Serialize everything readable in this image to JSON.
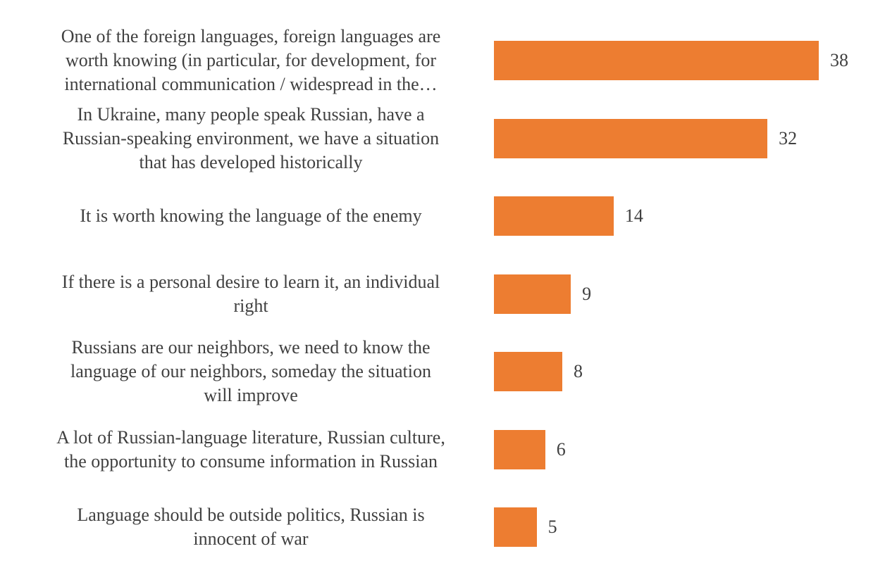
{
  "chart_data": {
    "type": "bar",
    "orientation": "horizontal",
    "categories": [
      "One of the foreign languages, foreign languages are\nworth knowing (in particular, for development, for\ninternational communication / widespread in the…",
      "In Ukraine, many people speak Russian, have a\nRussian-speaking environment, we have a situation\nthat has developed historically",
      "It is worth knowing the language of the enemy",
      "If there is a personal desire to learn it, an individual\nright",
      "Russians are our neighbors, we need to know the\nlanguage of our neighbors, someday the situation\nwill improve",
      "A lot of Russian-language literature, Russian culture,\nthe opportunity to consume information in Russian",
      "Language should be outside politics, Russian is\ninnocent of war"
    ],
    "values": [
      38,
      32,
      14,
      9,
      8,
      6,
      5
    ],
    "data_labels": [
      "38",
      "32",
      "14",
      "9",
      "8",
      "6",
      "5"
    ],
    "xlim": [
      0,
      40
    ],
    "grid": false,
    "legend": "none",
    "bar_color": "#ed7d31",
    "text_color": "#404040"
  }
}
